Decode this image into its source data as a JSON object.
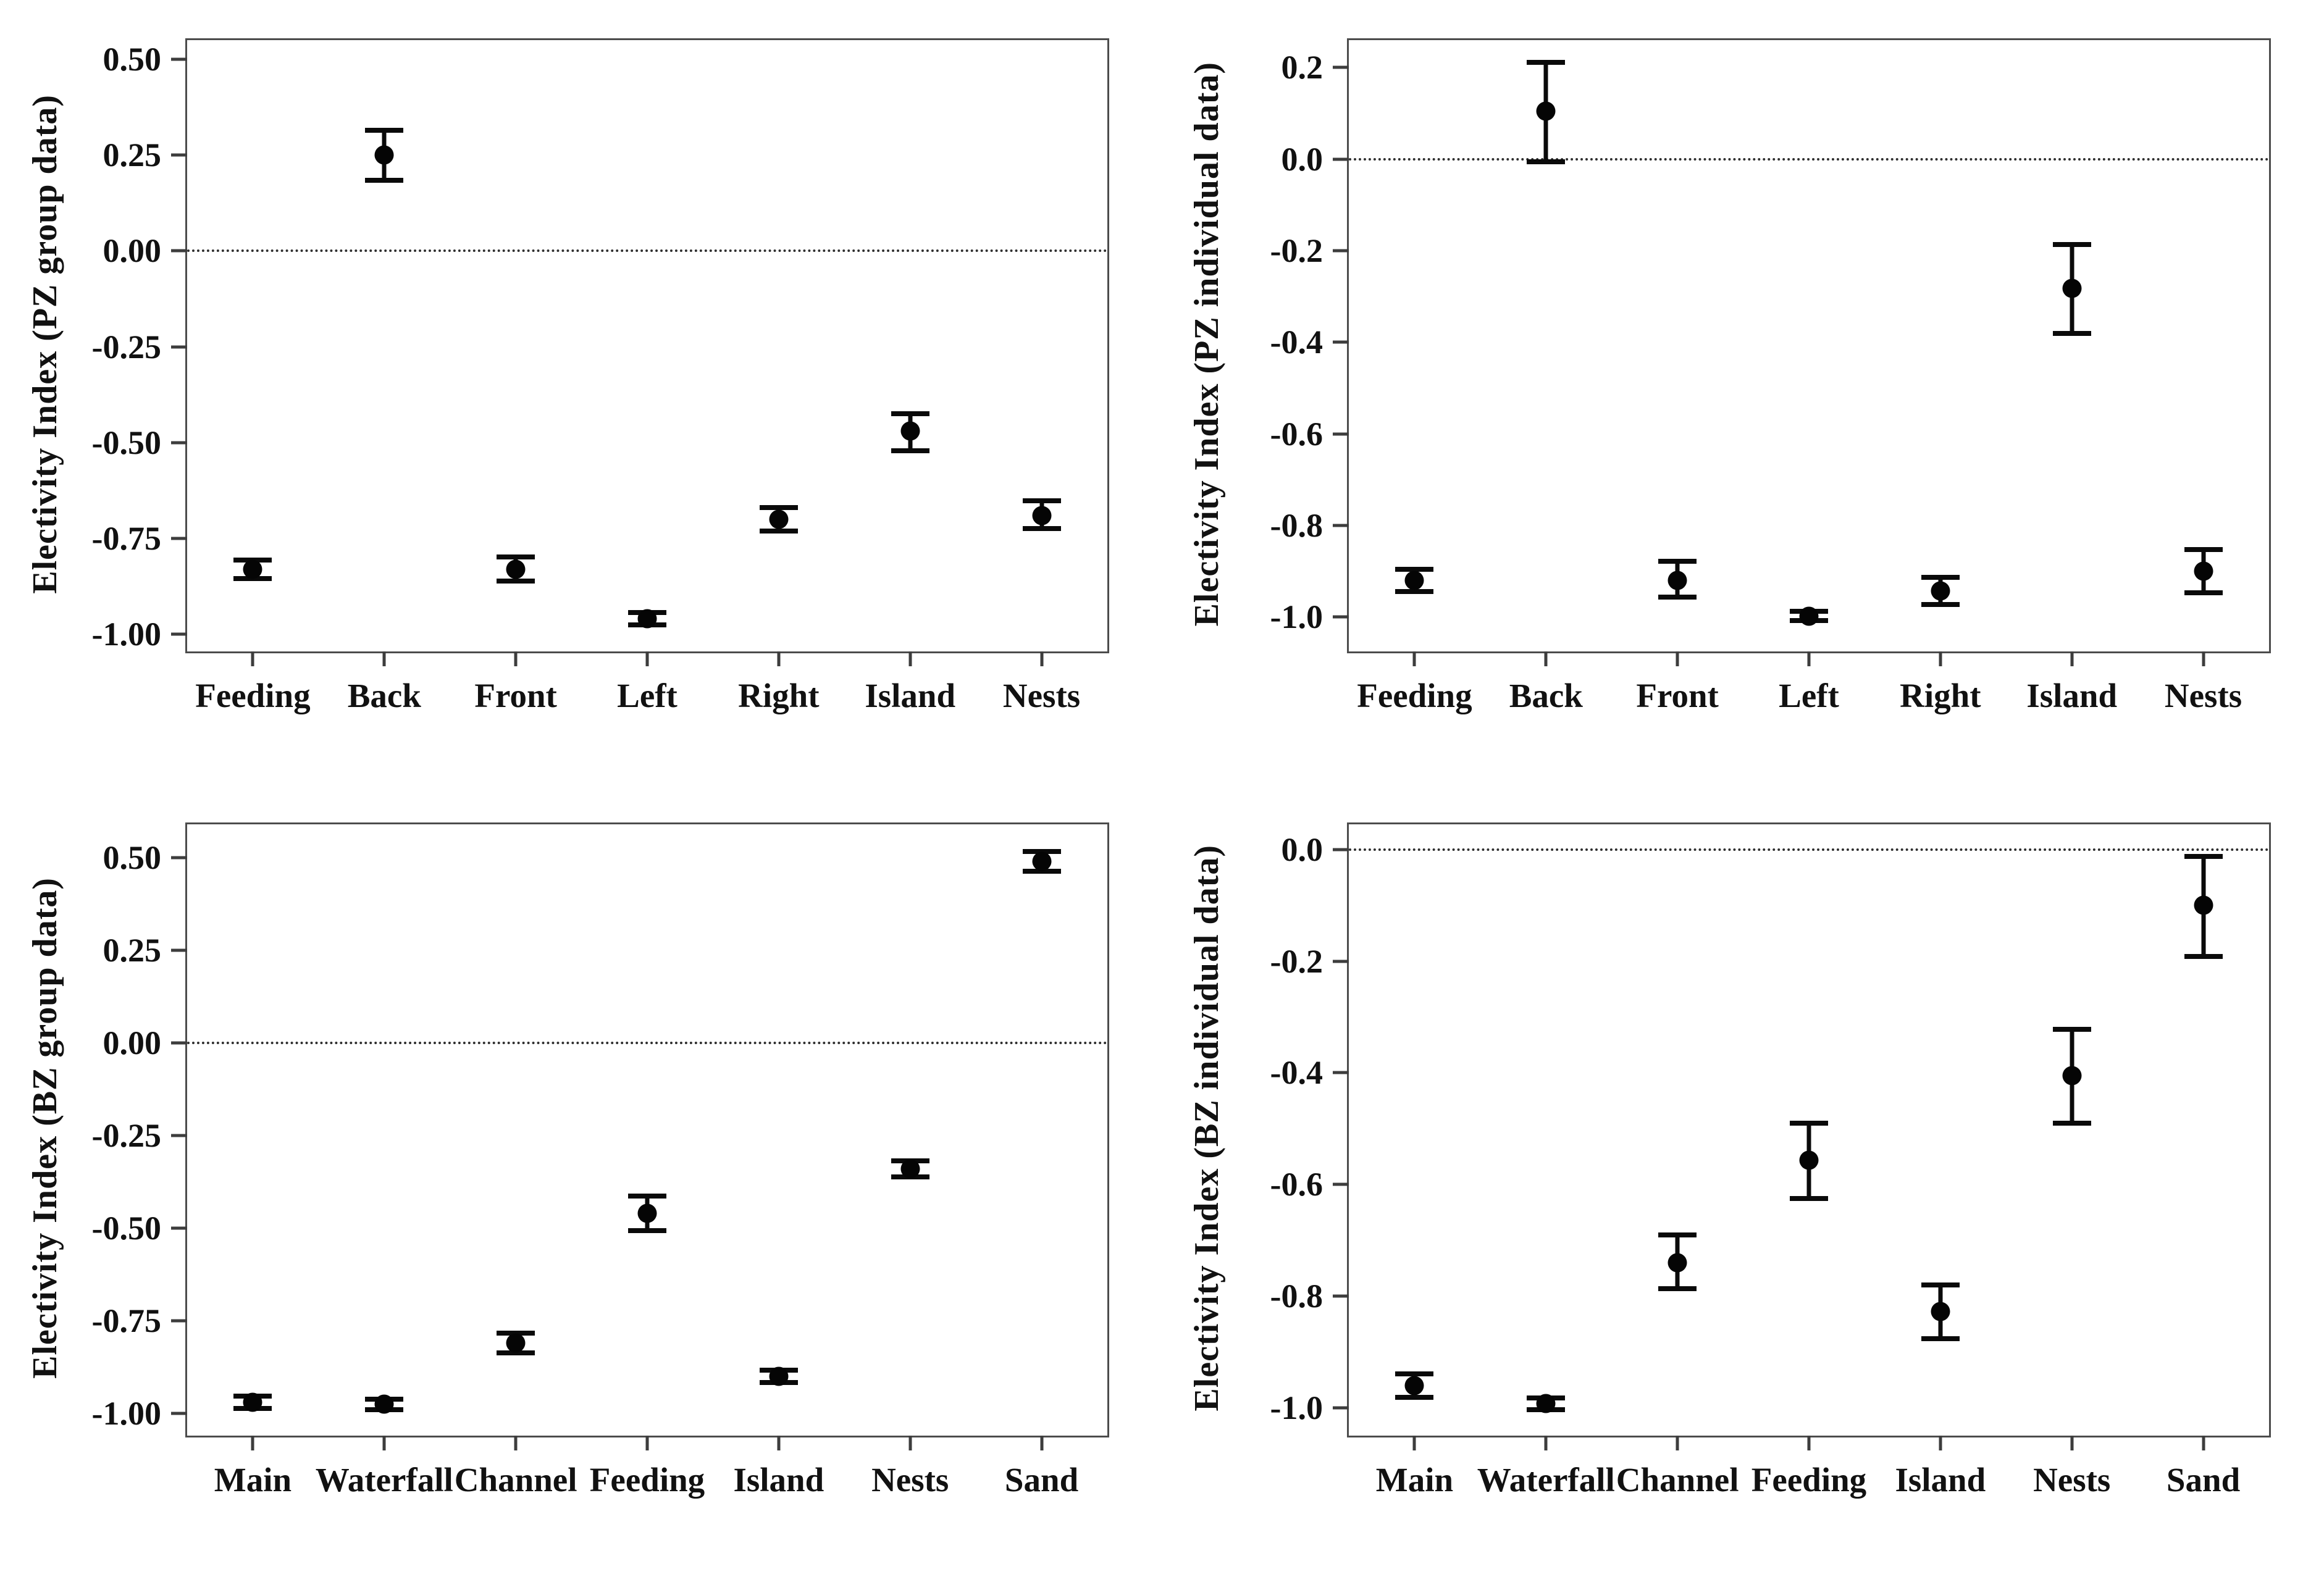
{
  "figure": {
    "background": "#ffffff",
    "text_color": "#111111",
    "frame_color": "#4c4c4c",
    "marker_color": "#050505",
    "layout": "2x2-grid"
  },
  "chart_data": [
    {
      "id": "pz-group",
      "grid_position": "top-left",
      "type": "scatter",
      "marker": "filled-circle",
      "error_bars": true,
      "grid": false,
      "legend": null,
      "title": "",
      "xlabel": "",
      "ylabel": "Electivity Index (PZ group data)",
      "categories": [
        "Feeding",
        "Back",
        "Front",
        "Left",
        "Right",
        "Island",
        "Nests"
      ],
      "values": [
        -0.83,
        0.25,
        -0.83,
        -0.96,
        -0.7,
        -0.47,
        -0.69
      ],
      "err_low": [
        -0.855,
        0.185,
        -0.862,
        -0.976,
        -0.731,
        -0.522,
        -0.724
      ],
      "err_high": [
        -0.806,
        0.315,
        -0.798,
        -0.944,
        -0.669,
        -0.424,
        -0.652
      ],
      "yticks": [
        "0.50",
        "0.25",
        "0.00",
        "-0.25",
        "-0.50",
        "-0.75",
        "-1.00"
      ],
      "ytick_values": [
        0.5,
        0.25,
        0,
        -0.25,
        -0.5,
        -0.75,
        -1
      ],
      "ylim": [
        -1.045,
        0.55
      ],
      "zero_line": 0
    },
    {
      "id": "pz-individual",
      "grid_position": "top-right",
      "type": "scatter",
      "marker": "filled-circle",
      "error_bars": true,
      "grid": false,
      "legend": null,
      "title": "",
      "xlabel": "",
      "ylabel": "Electivity Index (PZ individual data)",
      "categories": [
        "Feeding",
        "Back",
        "Front",
        "Left",
        "Right",
        "Island",
        "Nests"
      ],
      "values": [
        -0.92,
        0.105,
        -0.92,
        -0.998,
        -0.943,
        -0.282,
        -0.9
      ],
      "err_low": [
        -0.944,
        -0.005,
        -0.957,
        -1.008,
        -0.973,
        -0.381,
        -0.947
      ],
      "err_high": [
        -0.896,
        0.212,
        -0.878,
        -0.988,
        -0.913,
        -0.186,
        -0.853
      ],
      "yticks": [
        "0.2",
        "0.0",
        "-0.2",
        "-0.4",
        "-0.6",
        "-0.8",
        "-1.0"
      ],
      "ytick_values": [
        0.2,
        0,
        -0.2,
        -0.4,
        -0.6,
        -0.8,
        -1
      ],
      "ylim": [
        -1.075,
        0.26
      ],
      "zero_line": 0
    },
    {
      "id": "bz-group",
      "grid_position": "bottom-left",
      "type": "scatter",
      "marker": "filled-circle",
      "error_bars": true,
      "grid": false,
      "legend": null,
      "title": "",
      "xlabel": "",
      "ylabel": "Electivity Index (BZ group data)",
      "categories": [
        "Main",
        "Waterfall",
        "Channel",
        "Feeding",
        "Island",
        "Nests",
        "Sand"
      ],
      "values": [
        -0.97,
        -0.975,
        -0.81,
        -0.46,
        -0.9,
        -0.34,
        0.49
      ],
      "err_low": [
        -0.986,
        -0.99,
        -0.836,
        -0.506,
        -0.916,
        -0.362,
        0.464
      ],
      "err_high": [
        -0.954,
        -0.961,
        -0.784,
        -0.414,
        -0.884,
        -0.318,
        0.516
      ],
      "yticks": [
        "0.50",
        "0.25",
        "0.00",
        "-0.25",
        "-0.50",
        "-0.75",
        "-1.00"
      ],
      "ytick_values": [
        0.5,
        0.25,
        0,
        -0.25,
        -0.5,
        -0.75,
        -1
      ],
      "ylim": [
        -1.06,
        0.59
      ],
      "zero_line": 0
    },
    {
      "id": "bz-individual",
      "grid_position": "bottom-right",
      "type": "scatter",
      "marker": "filled-circle",
      "error_bars": true,
      "grid": false,
      "legend": null,
      "title": "",
      "xlabel": "",
      "ylabel": "Electivity Index (BZ individual data)",
      "categories": [
        "Main",
        "Waterfall",
        "Channel",
        "Feeding",
        "Island",
        "Nests",
        "Sand"
      ],
      "values": [
        -0.96,
        -0.993,
        -0.74,
        -0.557,
        -0.828,
        -0.405,
        -0.1
      ],
      "err_low": [
        -0.981,
        -1.004,
        -0.787,
        -0.625,
        -0.876,
        -0.49,
        -0.192
      ],
      "err_high": [
        -0.939,
        -0.982,
        -0.69,
        -0.49,
        -0.78,
        -0.322,
        -0.013
      ],
      "yticks": [
        "0.0",
        "-0.2",
        "-0.4",
        "-0.6",
        "-0.8",
        "-1.0"
      ],
      "ytick_values": [
        0,
        -0.2,
        -0.4,
        -0.6,
        -0.8,
        -1
      ],
      "ylim": [
        -1.05,
        0.045
      ],
      "zero_line": 0
    }
  ]
}
